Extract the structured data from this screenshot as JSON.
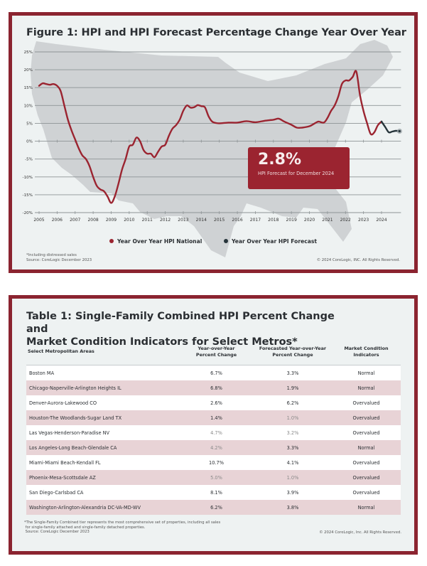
{
  "figure": {
    "title": "Figure 1: HPI and HPI Forecast Percentage Change Year Over Year",
    "callout": {
      "value": "2.8%",
      "label": "HPI Forecast for December 2024"
    },
    "legend": [
      {
        "label": "Year Over Year HPI National",
        "color": "#9b2430"
      },
      {
        "label": "Year Over Year HPI Forecast",
        "color": "#26343a"
      }
    ],
    "footnote_lines": [
      "*Including distressed sales",
      "Source: CoreLogic December 2023"
    ],
    "copyright": "© 2024 CoreLogic, INC. All Rights Reserved."
  },
  "chart_data": {
    "type": "line",
    "title": "Figure 1: HPI and HPI Forecast Percentage Change Year Over Year",
    "xlabel": "",
    "ylabel": "",
    "xlim": [
      2005,
      2025
    ],
    "ylim": [
      -20,
      25
    ],
    "yticks": [
      25,
      20,
      15,
      10,
      5,
      0,
      -5,
      -10,
      -15,
      -20
    ],
    "ytick_labels": [
      "25%",
      "20%",
      "15%",
      "10%",
      "5%",
      "0%",
      "-5%",
      "-10%",
      "-15%",
      "-20%"
    ],
    "xticks": [
      2005,
      2006,
      2007,
      2008,
      2009,
      2010,
      2011,
      2012,
      2013,
      2014,
      2015,
      2016,
      2017,
      2018,
      2019,
      2020,
      2021,
      2022,
      2023,
      2024
    ],
    "grid": "horizontal",
    "legend_position": "bottom-center",
    "annotation": "2.8% HPI Forecast for December 2024",
    "series": [
      {
        "name": "Year Over Year HPI National",
        "color": "#9b2430",
        "x": [
          2005.0,
          2005.2,
          2005.4,
          2005.6,
          2005.8,
          2006.0,
          2006.2,
          2006.4,
          2006.6,
          2006.8,
          2007.0,
          2007.2,
          2007.4,
          2007.6,
          2007.8,
          2008.0,
          2008.2,
          2008.4,
          2008.6,
          2008.8,
          2009.0,
          2009.2,
          2009.4,
          2009.6,
          2009.8,
          2010.0,
          2010.2,
          2010.4,
          2010.6,
          2010.8,
          2011.0,
          2011.2,
          2011.4,
          2011.6,
          2011.8,
          2012.0,
          2012.2,
          2012.4,
          2012.6,
          2012.8,
          2013.0,
          2013.2,
          2013.4,
          2013.6,
          2013.8,
          2014.0,
          2014.2,
          2014.4,
          2014.6,
          2014.8,
          2015.0,
          2015.5,
          2016.0,
          2016.5,
          2017.0,
          2017.5,
          2018.0,
          2018.3,
          2018.6,
          2019.0,
          2019.3,
          2019.6,
          2020.0,
          2020.3,
          2020.5,
          2020.8,
          2021.0,
          2021.2,
          2021.4,
          2021.6,
          2021.8,
          2022.0,
          2022.2,
          2022.4,
          2022.6,
          2022.8,
          2023.0,
          2023.2,
          2023.4,
          2023.6,
          2023.8,
          2024.0
        ],
        "y": [
          15.5,
          16.2,
          16.0,
          15.8,
          16.0,
          15.5,
          14.0,
          10.0,
          6.0,
          3.0,
          0.5,
          -2.0,
          -4.0,
          -5.0,
          -7.0,
          -10.0,
          -12.5,
          -13.5,
          -14.0,
          -15.5,
          -17.3,
          -15.5,
          -12.0,
          -8.0,
          -5.0,
          -1.5,
          -1.0,
          1.0,
          0.0,
          -2.5,
          -3.5,
          -3.5,
          -4.5,
          -3.0,
          -1.5,
          -1.0,
          1.5,
          3.5,
          4.5,
          6.0,
          8.5,
          10.0,
          9.4,
          9.5,
          10.1,
          9.8,
          9.5,
          7.0,
          5.5,
          5.1,
          5.0,
          5.2,
          5.2,
          5.6,
          5.3,
          5.7,
          6.0,
          6.3,
          5.5,
          4.6,
          3.8,
          3.8,
          4.2,
          5.0,
          5.5,
          5.2,
          6.5,
          8.5,
          10.0,
          12.5,
          16.0,
          17.0,
          17.0,
          18.0,
          19.5,
          13.0,
          8.5,
          5.0,
          2.0,
          2.5,
          4.5,
          5.5
        ]
      },
      {
        "name": "Year Over Year HPI Forecast",
        "color": "#26343a",
        "x": [
          2024.0,
          2024.2,
          2024.4,
          2024.6,
          2024.8,
          2025.0
        ],
        "y": [
          5.5,
          4.0,
          2.5,
          2.7,
          2.9,
          2.8
        ]
      }
    ]
  },
  "table": {
    "title": "Table 1: Single-Family Combined HPI Percent Change and Market Condition Indicators for Select Metros*",
    "title_line1": "Table 1: Single-Family Combined HPI Percent Change and",
    "title_line2": "Market Condition Indicators for Select Metros*",
    "columns": [
      {
        "line1": "Select Metropolitan Areas",
        "line2": ""
      },
      {
        "line1": "Year-over-Year",
        "line2": "Percent Change"
      },
      {
        "line1": "Forecasted Year-over-Year",
        "line2": "Percent Change"
      },
      {
        "line1": "Market Condition",
        "line2": "Indicators"
      }
    ],
    "rows": [
      {
        "metro": "Boston MA",
        "yoy": "6.7%",
        "forecast": "3.3%",
        "indicator": "Normal"
      },
      {
        "metro": "Chicago-Naperville-Arlington Heights IL",
        "yoy": "6.8%",
        "forecast": "1.9%",
        "indicator": "Normal"
      },
      {
        "metro": "Denver-Aurora-Lakewood CO",
        "yoy": "2.6%",
        "forecast": "6.2%",
        "indicator": "Overvalued"
      },
      {
        "metro": "Houston-The Woodlands-Sugar Land TX",
        "yoy": "1.4%",
        "forecast": "1.0%",
        "indicator": "Overvalued"
      },
      {
        "metro": "Las Vegas-Henderson-Paradise NV",
        "yoy": "4.7%",
        "forecast": "3.2%",
        "indicator": "Overvalued"
      },
      {
        "metro": "Los Angeles-Long Beach-Glendale CA",
        "yoy": "4.2%",
        "forecast": "3.3%",
        "indicator": "Normal"
      },
      {
        "metro": "Miami-Miami Beach-Kendall FL",
        "yoy": "10.7%",
        "forecast": "4.1%",
        "indicator": "Overvalued"
      },
      {
        "metro": "Phoenix-Mesa-Scottsdale AZ",
        "yoy": "5.0%",
        "forecast": "1.0%",
        "indicator": "Overvalued"
      },
      {
        "metro": "San Diego-Carlsbad CA",
        "yoy": "8.1%",
        "forecast": "3.9%",
        "indicator": "Overvalued"
      },
      {
        "metro": "Washington-Arlington-Alexandria DC-VA-MD-WV",
        "yoy": "6.2%",
        "forecast": "3.8%",
        "indicator": "Normal"
      }
    ],
    "footnote_lines": [
      "*The Single-Family Combined tier represents the most comprehensive set of properties, including all sales",
      " for single-family attached and single-family detached properties.",
      " Source: CoreLogic December 2023"
    ],
    "copyright": "© 2024 CoreLogic, Inc. All Rights Reserved."
  },
  "colors": {
    "border": "#8b2430",
    "panel_bg": "#eef2f2",
    "map": "#cfd2d4",
    "national_line": "#9b2430",
    "forecast_line": "#26343a",
    "row_shade": "#e8d3d6"
  }
}
